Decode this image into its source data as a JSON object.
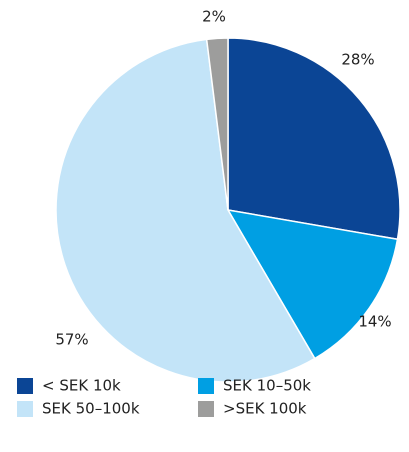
{
  "chart_data": {
    "type": "pie",
    "categories": [
      "< SEK 10k",
      "SEK 10–50k",
      "SEK 50–100k",
      ">SEK 100k"
    ],
    "values": [
      28,
      14,
      57,
      2
    ],
    "value_labels": [
      "28%",
      "14%",
      "57%",
      "2%"
    ],
    "colors": [
      "#0b4595",
      "#009fe3",
      "#c3e4f8",
      "#9d9d9c"
    ]
  }
}
